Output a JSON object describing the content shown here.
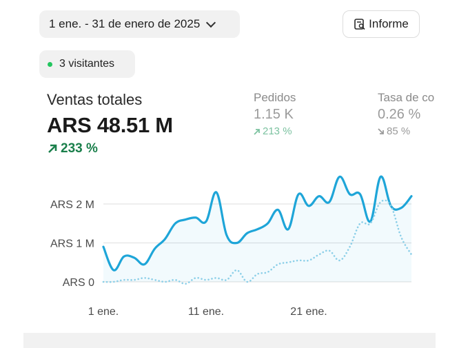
{
  "header": {
    "date_range": "1 ene. - 31 de enero de 2025",
    "report_label": "Informe"
  },
  "visitors": {
    "label": "3 visitantes",
    "dot_color": "#22c55e"
  },
  "metrics": {
    "total_sales": {
      "label": "Ventas totales",
      "value": "ARS 48.51 M",
      "change": "233 %",
      "direction": "up",
      "change_color": "#1a7f4b"
    },
    "orders": {
      "label": "Pedidos",
      "value": "1.15 K",
      "change": "213 %",
      "direction": "up"
    },
    "conversion": {
      "label": "Tasa de co",
      "value": "0.26 %",
      "change": "85 %",
      "direction": "down"
    }
  },
  "chart_data": {
    "type": "line",
    "x_ticks": [
      "1 ene.",
      "11 ene.",
      "21 ene."
    ],
    "y_ticks": [
      "ARS 0",
      "ARS 1 M",
      "ARS 2 M"
    ],
    "ylim": [
      0,
      2.8
    ],
    "x_range": [
      1,
      31
    ],
    "grid": true,
    "series": [
      {
        "style": "solid",
        "color": "#1ea5d8",
        "values": [
          0.9,
          0.3,
          0.65,
          0.62,
          0.45,
          0.85,
          1.1,
          1.5,
          1.6,
          1.65,
          1.55,
          2.3,
          1.2,
          1.0,
          1.25,
          1.35,
          1.5,
          1.85,
          1.35,
          2.25,
          1.95,
          2.2,
          2.05,
          2.7,
          2.25,
          2.25,
          1.55,
          2.7,
          1.95,
          1.9,
          2.2
        ]
      },
      {
        "style": "dotted",
        "color": "#8ccfe8",
        "values": [
          0.0,
          0.0,
          0.05,
          0.05,
          0.1,
          0.05,
          0.0,
          0.05,
          -0.05,
          0.1,
          0.05,
          0.1,
          0.05,
          0.3,
          0.0,
          0.2,
          0.25,
          0.45,
          0.5,
          0.55,
          0.55,
          0.7,
          0.8,
          0.55,
          0.9,
          1.5,
          1.5,
          2.05,
          1.95,
          1.15,
          0.7
        ]
      }
    ]
  }
}
